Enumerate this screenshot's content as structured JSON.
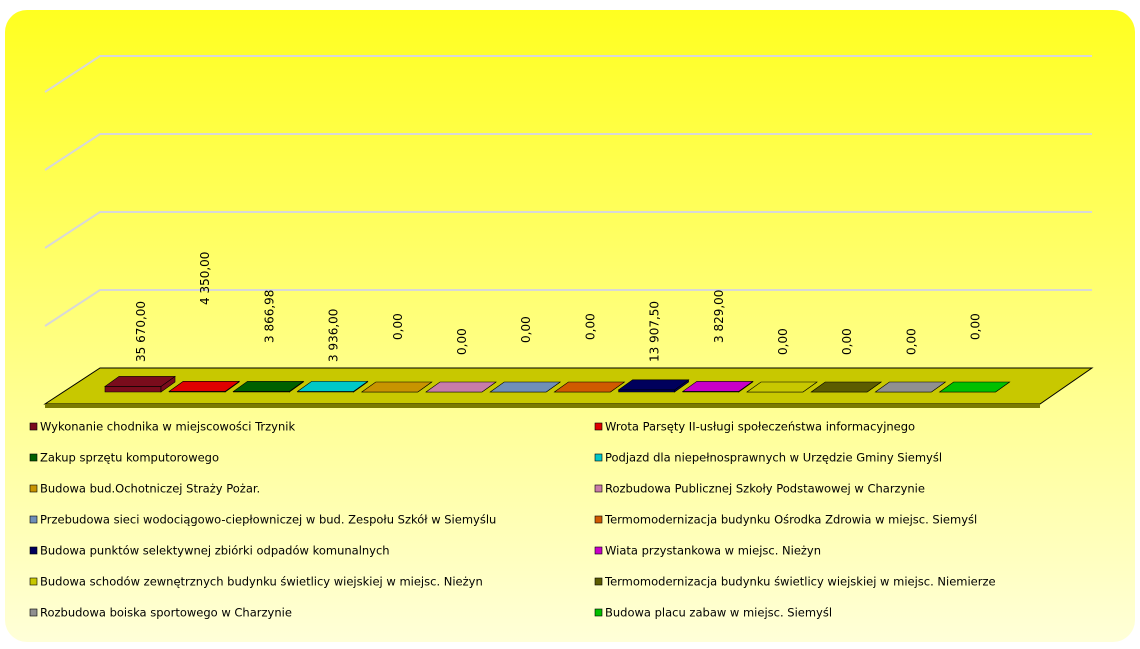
{
  "chart_data": {
    "type": "bar",
    "categories": [
      "Wykonanie chodnika w miejscowości Trzynik",
      "Wrota Parsęty II-usługi społeczeństwa informacyjnego",
      "Zakup sprzętu komputorowego",
      "Podjazd dla niepełnosprawnych w Urzędzie Gminy Siemyśl",
      "Budowa bud.Ochotniczej Straży Pożar.",
      "Rozbudowa Publicznej Szkoły Podstawowej w Charzynie",
      "Przebudowa sieci wodociągowo-ciepłowniczej w bud. Zespołu Szkół w Siemyślu",
      "Termomodernizacja budynku Ośrodka Zdrowia w miejsc. Siemyśl",
      "Budowa punktów selektywnej zbiórki odpadów komunalnych",
      "Wiata przystankowa w miejsc. Nieżyn",
      "Budowa schodów zewnętrznych budynku świetlicy wiejskiej w miejsc. Nieżyn",
      "Termomodernizacja budynku świetlicy wiejskiej w miejsc. Niemierze",
      "Rozbudowa boiska sportowego w Charzynie",
      "Budowa placu zabaw w miejsc. Siemyśl"
    ],
    "values": [
      35670,
      4350,
      3866.98,
      3936,
      0,
      0,
      0,
      0,
      13907.5,
      3829,
      0,
      0,
      0,
      0
    ],
    "value_labels": [
      "35 670,00",
      "4 350,00",
      "3 866,98",
      "3 936,00",
      "0,00",
      "0,00",
      "0,00",
      "0,00",
      "13 907,50",
      "3 829,00",
      "0,00",
      "0,00",
      "0,00",
      "0,00"
    ],
    "colors": [
      "#7a0c1c",
      "#e00000",
      "#006000",
      "#00c8c8",
      "#c89400",
      "#c87ca8",
      "#6f8fb8",
      "#d05a00",
      "#00005c",
      "#c800c8",
      "#c8c800",
      "#5c5c00",
      "#909090",
      "#00c000"
    ],
    "ylim": [
      0,
      2000000
    ],
    "yticks": [
      0,
      500000,
      1000000,
      1500000,
      2000000
    ],
    "grid": true
  }
}
